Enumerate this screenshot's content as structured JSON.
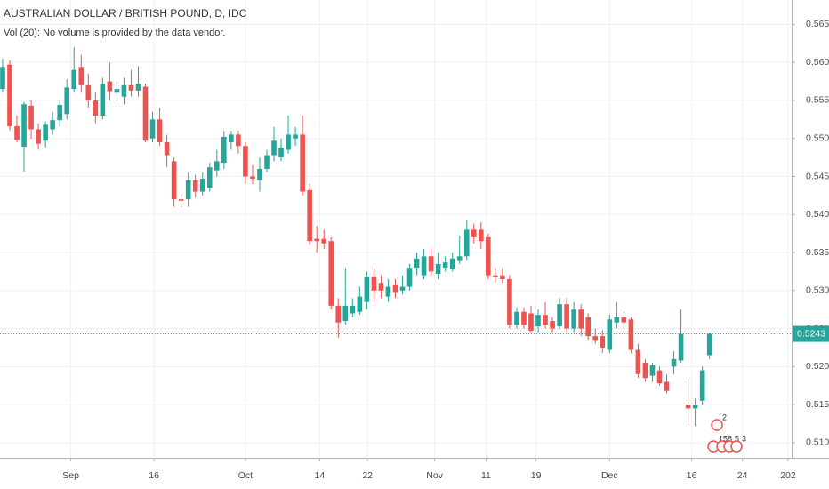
{
  "chart_data": {
    "type": "candlestick",
    "title": "AUSTRALIAN DOLLAR / BRITISH POUND, D, IDC",
    "subtitle": "Vol (20): No volume is provided by the data vendor.",
    "up_color": "#26a69a",
    "down_color": "#ef5350",
    "open": [
      0.5565,
      0.5597,
      0.5516,
      0.5489,
      0.5543,
      0.5512,
      0.5497,
      0.5512,
      0.5524,
      0.5532,
      0.5565,
      0.5594,
      0.557,
      0.555,
      0.553,
      0.5575,
      0.556,
      0.5555,
      0.557,
      0.5563,
      0.5568,
      0.55,
      0.5525,
      0.5495,
      0.547,
      0.542,
      0.542,
      0.5445,
      0.543,
      0.5435,
      0.5458,
      0.5468,
      0.5495,
      0.5505,
      0.549,
      0.545,
      0.5445,
      0.546,
      0.5478,
      0.5475,
      0.5485,
      0.55,
      0.5505,
      0.5432,
      0.5368,
      0.5368,
      0.5365,
      0.528,
      0.526,
      0.527,
      0.5272,
      0.5285,
      0.5318,
      0.531,
      0.5292,
      0.5308,
      0.53,
      0.5305,
      0.533,
      0.532,
      0.5345,
      0.5322,
      0.533,
      0.5328,
      0.534,
      0.5345,
      0.538,
      0.538,
      0.537,
      0.532,
      0.532,
      0.5315,
      0.5255,
      0.5272,
      0.527,
      0.5253,
      0.5268,
      0.526,
      0.5253,
      0.5282,
      0.525,
      0.5275,
      0.5265,
      0.524,
      0.524,
      0.5222,
      0.5258,
      0.5265,
      0.5262,
      0.5222,
      0.5205,
      0.5188,
      0.5195,
      0.518,
      0.52,
      0.5208,
      0.515,
      0.5145,
      0.5155,
      0.5215
    ],
    "high": [
      0.5605,
      0.5603,
      0.553,
      0.5548,
      0.555,
      0.552,
      0.5522,
      0.5535,
      0.555,
      0.5578,
      0.562,
      0.561,
      0.5585,
      0.556,
      0.558,
      0.56,
      0.5575,
      0.558,
      0.559,
      0.5595,
      0.5572,
      0.5535,
      0.554,
      0.5505,
      0.5475,
      0.5428,
      0.5455,
      0.5452,
      0.5455,
      0.5468,
      0.5485,
      0.551,
      0.551,
      0.551,
      0.5495,
      0.5465,
      0.5475,
      0.5485,
      0.5515,
      0.55,
      0.553,
      0.5515,
      0.553,
      0.544,
      0.5385,
      0.538,
      0.537,
      0.529,
      0.533,
      0.529,
      0.5305,
      0.5325,
      0.533,
      0.532,
      0.5315,
      0.5315,
      0.532,
      0.5335,
      0.535,
      0.5355,
      0.5355,
      0.535,
      0.5345,
      0.535,
      0.5372,
      0.5392,
      0.5388,
      0.539,
      0.5375,
      0.533,
      0.533,
      0.532,
      0.5278,
      0.5278,
      0.528,
      0.5275,
      0.5285,
      0.5265,
      0.529,
      0.529,
      0.5285,
      0.5282,
      0.527,
      0.525,
      0.5248,
      0.5268,
      0.5285,
      0.5272,
      0.5265,
      0.523,
      0.521,
      0.5205,
      0.52,
      0.519,
      0.522,
      0.5275,
      0.5185,
      0.5158,
      0.52,
      0.5245
    ],
    "low": [
      0.556,
      0.551,
      0.5495,
      0.5456,
      0.55,
      0.5485,
      0.5488,
      0.5505,
      0.5515,
      0.5525,
      0.556,
      0.556,
      0.554,
      0.552,
      0.5525,
      0.555,
      0.555,
      0.5545,
      0.5555,
      0.5555,
      0.5495,
      0.5495,
      0.549,
      0.5462,
      0.541,
      0.541,
      0.541,
      0.5422,
      0.5425,
      0.543,
      0.545,
      0.546,
      0.5485,
      0.548,
      0.544,
      0.544,
      0.543,
      0.5455,
      0.547,
      0.547,
      0.548,
      0.549,
      0.5425,
      0.536,
      0.535,
      0.5355,
      0.5275,
      0.5238,
      0.5255,
      0.5265,
      0.5268,
      0.5275,
      0.5285,
      0.529,
      0.5285,
      0.529,
      0.5295,
      0.53,
      0.532,
      0.5315,
      0.532,
      0.5315,
      0.5325,
      0.5325,
      0.5335,
      0.534,
      0.5362,
      0.5355,
      0.5315,
      0.531,
      0.531,
      0.525,
      0.525,
      0.525,
      0.5245,
      0.5245,
      0.525,
      0.5245,
      0.525,
      0.5245,
      0.5245,
      0.524,
      0.5235,
      0.523,
      0.5218,
      0.5218,
      0.525,
      0.5245,
      0.5218,
      0.5185,
      0.518,
      0.518,
      0.5175,
      0.5165,
      0.519,
      0.5205,
      0.5122,
      0.5122,
      0.515,
      0.521
    ],
    "close": [
      0.5594,
      0.5516,
      0.5498,
      0.5545,
      0.5512,
      0.5493,
      0.5518,
      0.5524,
      0.5544,
      0.5567,
      0.559,
      0.557,
      0.555,
      0.553,
      0.5572,
      0.5562,
      0.5565,
      0.557,
      0.5563,
      0.5572,
      0.5497,
      0.5525,
      0.5495,
      0.5478,
      0.542,
      0.5418,
      0.5445,
      0.543,
      0.5447,
      0.5462,
      0.547,
      0.5502,
      0.5505,
      0.549,
      0.545,
      0.5447,
      0.546,
      0.5478,
      0.5497,
      0.5488,
      0.5505,
      0.5505,
      0.543,
      0.5365,
      0.5365,
      0.5362,
      0.528,
      0.5258,
      0.528,
      0.528,
      0.5292,
      0.5318,
      0.53,
      0.53,
      0.5305,
      0.5298,
      0.5305,
      0.533,
      0.5342,
      0.5345,
      0.5325,
      0.5335,
      0.5337,
      0.5342,
      0.5345,
      0.538,
      0.537,
      0.5365,
      0.532,
      0.5318,
      0.5315,
      0.5255,
      0.5272,
      0.5255,
      0.5247,
      0.5268,
      0.5255,
      0.525,
      0.5282,
      0.525,
      0.5275,
      0.525,
      0.524,
      0.5235,
      0.5225,
      0.5262,
      0.5265,
      0.5258,
      0.5222,
      0.519,
      0.5185,
      0.5202,
      0.5178,
      0.5168,
      0.521,
      0.5243,
      0.5145,
      0.515,
      0.5195,
      0.5243
    ],
    "last_price": {
      "value": 0.5243,
      "label": "0.5243"
    },
    "xlim": [
      -0.37,
      110.5
    ],
    "xticks": [
      {
        "value": 9.55,
        "label": "Sep"
      },
      {
        "value": 21.2,
        "label": "16"
      },
      {
        "value": 34,
        "label": "Oct"
      },
      {
        "value": 44.4,
        "label": "14"
      },
      {
        "value": 51.1,
        "label": "22"
      },
      {
        "value": 60.5,
        "label": "Nov"
      },
      {
        "value": 67.7,
        "label": "11"
      },
      {
        "value": 74.7,
        "label": "19"
      },
      {
        "value": 85,
        "label": "Dec"
      },
      {
        "value": 96.5,
        "label": "16"
      },
      {
        "value": 103.6,
        "label": "24"
      },
      {
        "value": 110,
        "label": "202"
      }
    ],
    "ylim": [
      0.508,
      0.5682
    ],
    "yticks": [
      {
        "value": 0.51,
        "label": "0.5100"
      },
      {
        "value": 0.515,
        "label": "0.5150"
      },
      {
        "value": 0.52,
        "label": "0.5200"
      },
      {
        "value": 0.525,
        "label": "0.5250"
      },
      {
        "value": 0.53,
        "label": "0.5300"
      },
      {
        "value": 0.535,
        "label": "0.5350"
      },
      {
        "value": 0.54,
        "label": "0.5400"
      },
      {
        "value": 0.545,
        "label": "0.5450"
      },
      {
        "value": 0.55,
        "label": "0.5500"
      },
      {
        "value": 0.555,
        "label": "0.5550"
      },
      {
        "value": 0.56,
        "label": "0.5600"
      },
      {
        "value": 0.565,
        "label": "0.5650"
      }
    ],
    "grid": true,
    "event_markers": [
      "2",
      "15",
      "8",
      "5",
      "3"
    ]
  }
}
